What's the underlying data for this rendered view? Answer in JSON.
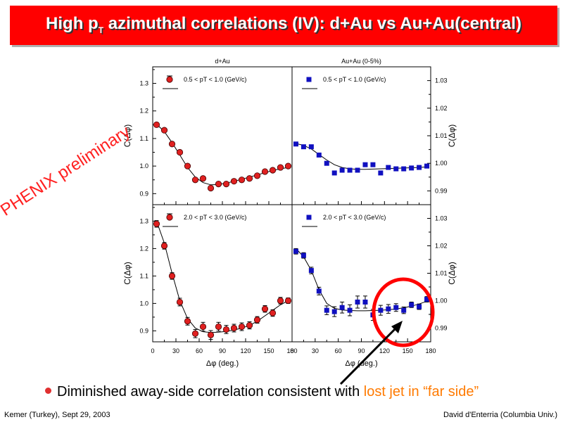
{
  "title": {
    "main": "High p",
    "sub": "T",
    "rest": " azimuthal correlations (IV): d+Au vs Au+Au(central)"
  },
  "watermark": "PHENIX preliminary",
  "bullet": {
    "text": "Diminished away-side correlation consistent with ",
    "highlight": "lost jet in “far side”"
  },
  "footer": {
    "left": "Kemer (Turkey), Sept 29, 2003",
    "right": "David d'Enterria (Columbia Univ.)"
  },
  "colors": {
    "red_marker": "#e02020",
    "blue_marker": "#1010c0",
    "title_bg": "#ff0000",
    "highlight": "#ff7a00",
    "circle": "#ff0000"
  },
  "chart_data": [
    {
      "type": "scatter",
      "column_title": "d+Au",
      "legend": "0.5 < pT < 1.0 (GeV/c)",
      "ylabel": "C(Δφ)",
      "xlim": [
        0,
        180
      ],
      "ylim": [
        0.86,
        1.36
      ],
      "yticks": [
        "0.9",
        "1.0",
        "1.1",
        "1.2",
        "1.3"
      ],
      "marker": "circle",
      "x": [
        5,
        15,
        25,
        35,
        45,
        55,
        65,
        75,
        85,
        95,
        105,
        115,
        125,
        135,
        145,
        155,
        165,
        175
      ],
      "y": [
        1.15,
        1.13,
        1.08,
        1.05,
        1.0,
        0.95,
        0.955,
        0.92,
        0.935,
        0.935,
        0.945,
        0.95,
        0.955,
        0.965,
        0.98,
        0.985,
        0.995,
        1.0
      ],
      "err": [
        0.006,
        0.006,
        0.006,
        0.006,
        0.006,
        0.006,
        0.006,
        0.006,
        0.006,
        0.006,
        0.006,
        0.006,
        0.006,
        0.006,
        0.006,
        0.006,
        0.006,
        0.006
      ],
      "fit_y": [
        1.152,
        1.125,
        1.085,
        1.04,
        0.995,
        0.96,
        0.94,
        0.932,
        0.933,
        0.938,
        0.945,
        0.952,
        0.96,
        0.968,
        0.976,
        0.984,
        0.99,
        0.995
      ]
    },
    {
      "type": "scatter",
      "column_title": "Au+Au (0-5%)",
      "legend": "0.5 < pT < 1.0 (GeV/c)",
      "ylabel": "C(Δφ)",
      "xlim": [
        0,
        180
      ],
      "ylim": [
        0.985,
        1.035
      ],
      "yticks": [
        "0.99",
        "1.00",
        "1.01",
        "1.02",
        "1.03"
      ],
      "marker": "square",
      "x": [
        5,
        15,
        25,
        35,
        45,
        55,
        65,
        75,
        85,
        95,
        105,
        115,
        125,
        135,
        145,
        155,
        165,
        175
      ],
      "y": [
        1.007,
        1.006,
        1.006,
        1.003,
        1.0,
        0.9965,
        0.9975,
        0.9975,
        0.9975,
        0.9995,
        0.9995,
        0.9965,
        0.9985,
        0.998,
        0.998,
        0.9983,
        0.9985,
        0.999
      ],
      "err": [
        0.0004,
        0.0004,
        0.0004,
        0.0004,
        0.0004,
        0.0004,
        0.0004,
        0.0004,
        0.0004,
        0.0004,
        0.0004,
        0.0004,
        0.0004,
        0.0004,
        0.0004,
        0.0004,
        0.0004,
        0.0004
      ],
      "fit_y": [
        1.0072,
        1.0065,
        1.0052,
        1.0032,
        1.0012,
        0.9995,
        0.9985,
        0.998,
        0.9978,
        0.9978,
        0.9979,
        0.998,
        0.9981,
        0.9982,
        0.9983,
        0.9984,
        0.9985,
        0.9987
      ]
    },
    {
      "type": "scatter",
      "legend": "2.0 < pT < 3.0 (GeV/c)",
      "ylabel": "C(Δφ)",
      "xlabel": "Δφ (deg.)",
      "xlim": [
        0,
        180
      ],
      "ylim": [
        0.86,
        1.36
      ],
      "yticks": [
        "0.9",
        "1.0",
        "1.1",
        "1.2",
        "1.3"
      ],
      "xticks": [
        "0",
        "30",
        "60",
        "90",
        "120",
        "150",
        "180"
      ],
      "marker": "circle",
      "x": [
        5,
        15,
        25,
        35,
        45,
        55,
        65,
        75,
        85,
        95,
        105,
        115,
        125,
        135,
        145,
        155,
        165,
        175
      ],
      "y": [
        1.29,
        1.21,
        1.1,
        1.005,
        0.935,
        0.89,
        0.915,
        0.885,
        0.915,
        0.905,
        0.91,
        0.915,
        0.92,
        0.94,
        0.98,
        0.965,
        1.01,
        1.01
      ],
      "err": [
        0.012,
        0.012,
        0.012,
        0.014,
        0.014,
        0.015,
        0.016,
        0.016,
        0.016,
        0.015,
        0.014,
        0.014,
        0.013,
        0.012,
        0.012,
        0.012,
        0.012,
        0.01
      ],
      "fit_y": [
        1.3,
        1.22,
        1.11,
        1.01,
        0.945,
        0.91,
        0.897,
        0.894,
        0.895,
        0.898,
        0.903,
        0.91,
        0.92,
        0.935,
        0.955,
        0.975,
        0.995,
        1.01
      ]
    },
    {
      "type": "scatter",
      "legend": "2.0 < pT < 3.0 (GeV/c)",
      "ylabel": "C(Δφ)",
      "xlabel": "Δφ (deg.)",
      "xlim": [
        0,
        180
      ],
      "ylim": [
        0.985,
        1.035
      ],
      "yticks": [
        "0.99",
        "1.00",
        "1.01",
        "1.02",
        "1.03"
      ],
      "xticks": [
        "0",
        "30",
        "60",
        "90",
        "120",
        "150",
        "180"
      ],
      "marker": "square",
      "x": [
        5,
        15,
        25,
        35,
        45,
        55,
        65,
        75,
        85,
        95,
        105,
        115,
        125,
        135,
        145,
        155,
        165,
        175
      ],
      "y": [
        1.018,
        1.0165,
        1.011,
        1.0035,
        0.9965,
        0.996,
        0.9975,
        0.9965,
        0.9995,
        0.9995,
        0.9948,
        0.9965,
        0.997,
        0.9975,
        0.9965,
        0.9985,
        0.9978,
        1.0005
      ],
      "err": [
        0.001,
        0.001,
        0.0012,
        0.0014,
        0.0016,
        0.0018,
        0.002,
        0.002,
        0.0022,
        0.0022,
        0.002,
        0.0018,
        0.0016,
        0.0014,
        0.0012,
        0.001,
        0.001,
        0.001
      ],
      "fit_y": [
        1.019,
        1.016,
        1.011,
        1.004,
        0.999,
        0.9972,
        0.9966,
        0.9964,
        0.9963,
        0.9963,
        0.9964,
        0.9965,
        0.9967,
        0.997,
        0.9974,
        0.998,
        0.9988,
        0.9998
      ]
    }
  ]
}
